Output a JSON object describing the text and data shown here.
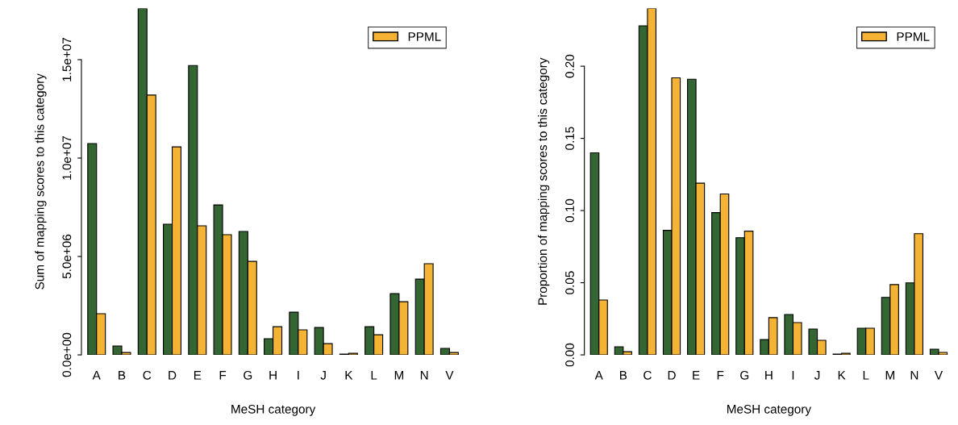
{
  "chart_data": [
    {
      "type": "bar",
      "xlabel": "MeSH category",
      "ylabel": "Sum of mapping scores to this category",
      "categories": [
        "A",
        "B",
        "C",
        "D",
        "E",
        "F",
        "G",
        "H",
        "I",
        "J",
        "K",
        "L",
        "M",
        "N",
        "V"
      ],
      "series": [
        {
          "color": "#336633",
          "values": [
            10740000,
            450000,
            17600000,
            6640000,
            14700000,
            7620000,
            6270000,
            820000,
            2170000,
            1390000,
            40000,
            1430000,
            3110000,
            3850000,
            330000
          ]
        },
        {
          "name": "PPML",
          "color": "#f5b335",
          "values": [
            2090000,
            120000,
            13200000,
            10570000,
            6560000,
            6110000,
            4750000,
            1430000,
            1270000,
            570000,
            80000,
            1020000,
            2700000,
            4630000,
            120000
          ]
        }
      ],
      "ylim": [
        0,
        17600000
      ],
      "yticks": [
        {
          "value": 0,
          "label": "0.0e+00"
        },
        {
          "value": 5000000,
          "label": "5.0e+06"
        },
        {
          "value": 10000000,
          "label": "1.0e+07"
        },
        {
          "value": 15000000,
          "label": "1.5e+07"
        }
      ],
      "legend": "top right",
      "grid": false
    },
    {
      "type": "bar",
      "xlabel": "MeSH category",
      "ylabel": "Proportion of mapping scores to this category",
      "categories": [
        "A",
        "B",
        "C",
        "D",
        "E",
        "F",
        "G",
        "H",
        "I",
        "J",
        "K",
        "L",
        "M",
        "N",
        "V"
      ],
      "series": [
        {
          "color": "#336633",
          "values": [
            0.14,
            0.0056,
            0.228,
            0.0863,
            0.191,
            0.0986,
            0.0812,
            0.0106,
            0.028,
            0.0179,
            0.0006,
            0.0185,
            0.0398,
            0.0499,
            0.0039
          ]
        },
        {
          "name": "PPML",
          "color": "#f5b335",
          "values": [
            0.038,
            0.0022,
            0.24,
            0.192,
            0.119,
            0.1115,
            0.0857,
            0.0258,
            0.0224,
            0.0101,
            0.0011,
            0.0185,
            0.0487,
            0.084,
            0.0017
          ]
        }
      ],
      "ylim": [
        0,
        0.24
      ],
      "yticks": [
        {
          "value": 0,
          "label": "0.00"
        },
        {
          "value": 0.05,
          "label": "0.05"
        },
        {
          "value": 0.1,
          "label": "0.10"
        },
        {
          "value": 0.15,
          "label": "0.15"
        },
        {
          "value": 0.2,
          "label": "0.20"
        }
      ],
      "legend": "top right",
      "grid": false
    }
  ]
}
